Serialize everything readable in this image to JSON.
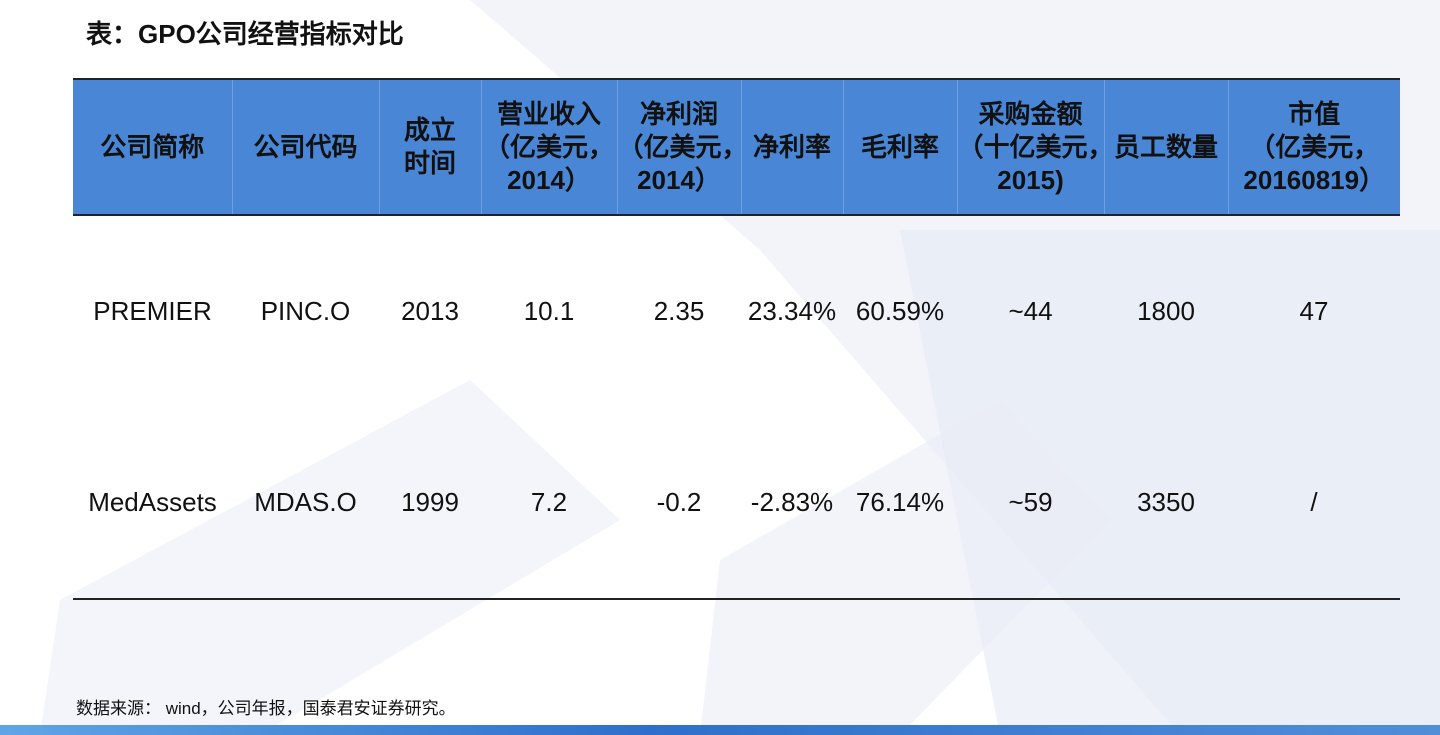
{
  "title": "表：GPO公司经营指标对比",
  "table": {
    "headers": [
      {
        "lines": [
          "公司简称"
        ]
      },
      {
        "lines": [
          "公司代码"
        ]
      },
      {
        "lines": [
          "成立",
          "时间"
        ]
      },
      {
        "lines": [
          "营业收入",
          "（亿美元，",
          "2014）"
        ]
      },
      {
        "lines": [
          "净利润",
          "（亿美元，",
          "2014）"
        ]
      },
      {
        "lines": [
          "净利率"
        ]
      },
      {
        "lines": [
          "毛利率"
        ]
      },
      {
        "lines": [
          "采购金额",
          "（十亿美元，",
          "2015)"
        ]
      },
      {
        "lines": [
          "员工数量"
        ]
      },
      {
        "lines": [
          "市值",
          "（亿美元，",
          "20160819）"
        ]
      }
    ],
    "rows": [
      [
        "PREMIER",
        "PINC.O",
        "2013",
        "10.1",
        "2.35",
        "23.34%",
        "60.59%",
        "~44",
        "1800",
        "47"
      ],
      [
        "MedAssets",
        "MDAS.O",
        "1999",
        "7.2",
        "-0.2",
        "-2.83%",
        "76.14%",
        "~59",
        "3350",
        "/"
      ]
    ]
  },
  "footnote": "数据来源： wind，公司年报，国泰君安证券研究。",
  "colors": {
    "header_bg": "#4a86d6",
    "bottom_bar": "#2e6fcb"
  }
}
